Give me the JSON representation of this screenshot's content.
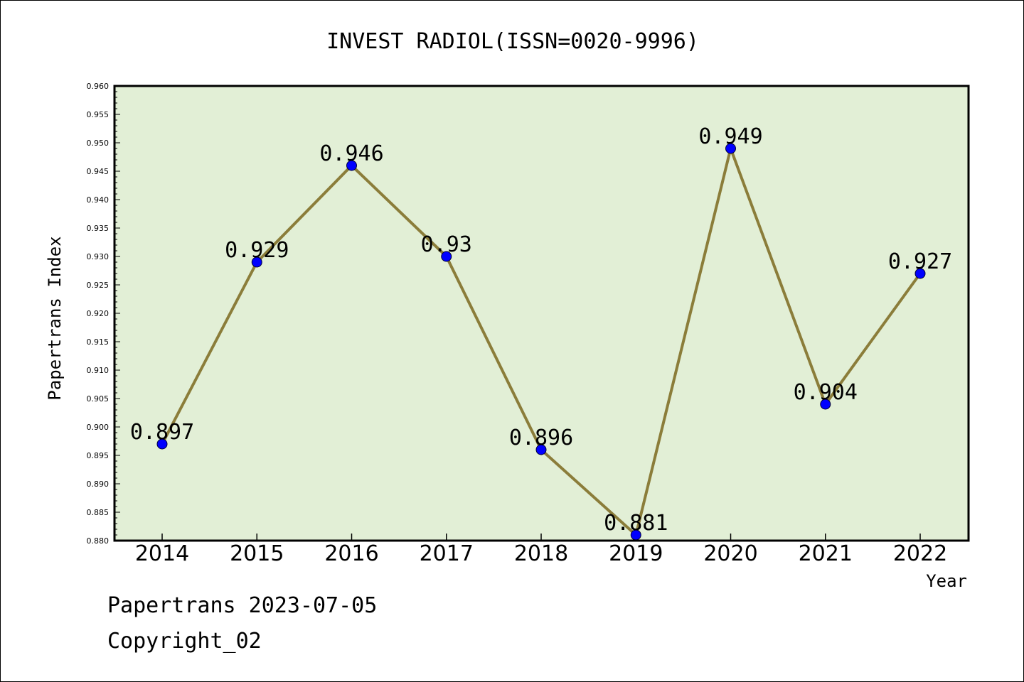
{
  "chart_data": {
    "type": "line",
    "title": "INVEST RADIOL(ISSN=0020-9996)",
    "xlabel": "Year",
    "ylabel": "Papertrans Index",
    "categories": [
      "2014",
      "2015",
      "2016",
      "2017",
      "2018",
      "2019",
      "2020",
      "2021",
      "2022"
    ],
    "series": [
      {
        "values": [
          0.897,
          0.929,
          0.946,
          0.93,
          0.896,
          0.881,
          0.949,
          0.904,
          0.927
        ],
        "labels": [
          "0.897",
          "0.929",
          "0.946",
          "0.93",
          "0.896",
          "0.881",
          "0.949",
          "0.904",
          "0.927"
        ]
      }
    ],
    "ylim": [
      0.88,
      0.96
    ],
    "yticks": [
      "0.880",
      "0.885",
      "0.890",
      "0.895",
      "0.900",
      "0.905",
      "0.910",
      "0.915",
      "0.920",
      "0.925",
      "0.930",
      "0.935",
      "0.940",
      "0.945",
      "0.950",
      "0.955",
      "0.960"
    ],
    "grid": false,
    "legend": "none",
    "colors": {
      "plot_background": "#e2efd6",
      "line": "#8b7d3a",
      "marker": "#0000ff"
    }
  },
  "footer": {
    "line1": "Papertrans 2023-07-05",
    "line2": "Copyright_02"
  }
}
